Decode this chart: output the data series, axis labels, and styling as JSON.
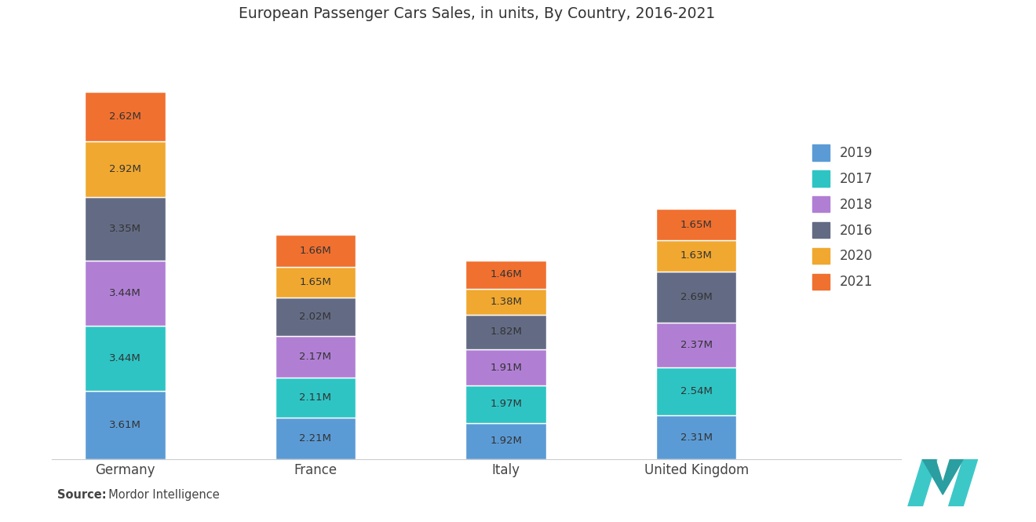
{
  "title": "European Passenger Cars Sales, in units, By Country, 2016-2021",
  "categories": [
    "Germany",
    "France",
    "Italy",
    "United Kingdom"
  ],
  "years_order": [
    "2019",
    "2017",
    "2018",
    "2016",
    "2020",
    "2021"
  ],
  "colors": {
    "2019": "#5B9BD5",
    "2017": "#2EC4C4",
    "2018": "#B07FD4",
    "2016": "#636B84",
    "2020": "#F0A830",
    "2021": "#F07030"
  },
  "data": {
    "Germany": {
      "2019": 3.61,
      "2017": 3.44,
      "2018": 3.44,
      "2016": 3.35,
      "2020": 2.92,
      "2021": 2.62
    },
    "France": {
      "2019": 2.21,
      "2017": 2.11,
      "2018": 2.17,
      "2016": 2.02,
      "2020": 1.65,
      "2021": 1.66
    },
    "Italy": {
      "2019": 1.92,
      "2017": 1.97,
      "2018": 1.91,
      "2016": 1.82,
      "2020": 1.38,
      "2021": 1.46
    },
    "United Kingdom": {
      "2019": 2.31,
      "2017": 2.54,
      "2018": 2.37,
      "2016": 2.69,
      "2020": 1.63,
      "2021": 1.65
    }
  },
  "bar_width": 0.55,
  "source_bold": "Source:",
  "source_normal": "  Mordor Intelligence",
  "background_color": "#FFFFFF",
  "legend_order": [
    "2019",
    "2017",
    "2018",
    "2016",
    "2020",
    "2021"
  ],
  "text_color": "#444444",
  "label_color": "#333333",
  "x_positions": [
    0.5,
    1.8,
    3.1,
    4.4
  ],
  "xlim": [
    0.0,
    5.8
  ],
  "ylim": [
    0,
    22
  ]
}
